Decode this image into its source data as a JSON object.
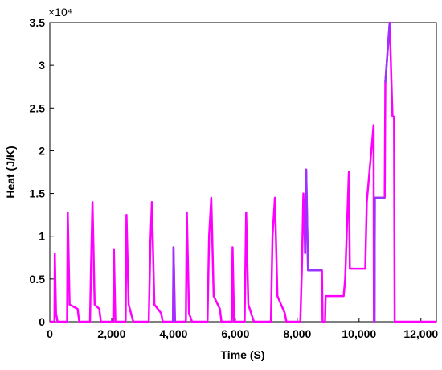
{
  "chart_data": {
    "type": "line",
    "x_label": "Time (S)",
    "y_label": "Heat (J/K)",
    "y_multiplier": "×10⁴",
    "xlim": [
      0,
      12500
    ],
    "ylim": [
      0,
      3.5
    ],
    "xticks": [
      0,
      {
        "value": 2000,
        "label": "2,000"
      },
      {
        "value": 4000,
        "label": "4,000"
      },
      {
        "value": 6000,
        "label": "6,000"
      },
      {
        "value": 8000,
        "label": "8,000"
      },
      {
        "value": 10000,
        "label": "10,000"
      },
      {
        "value": 12000,
        "label": "12,000"
      }
    ],
    "yticks": [
      0,
      0.5,
      1,
      1.5,
      2,
      2.5,
      3,
      3.5
    ],
    "grid": false,
    "series": [
      {
        "color": "#ff00ff",
        "x": [
          0,
          150,
          160,
          200,
          250,
          560,
          580,
          640,
          900,
          950,
          1300,
          1330,
          1380,
          1450,
          1600,
          1650,
          2050,
          2070,
          2120,
          2450,
          2480,
          2550,
          2700,
          3200,
          3250,
          3300,
          3380,
          3600,
          3650,
          3980,
          4000,
          4050,
          4400,
          4430,
          4500,
          4600,
          5100,
          5150,
          5220,
          5300,
          5500,
          5550,
          5890,
          5910,
          5960,
          6300,
          6350,
          6420,
          6600,
          7150,
          7200,
          7280,
          7360,
          7600,
          7650,
          8100,
          8150,
          8200,
          8260,
          8290,
          8350,
          8800,
          8820,
          8900,
          8920,
          9500,
          9550,
          9670,
          9700,
          10200,
          10250,
          10470,
          10480,
          10500,
          10510,
          10830,
          10850,
          10990,
          11080,
          11130,
          11150,
          12500
        ],
        "values": [
          0,
          0,
          0.8,
          0.1,
          0,
          0,
          1.28,
          0.2,
          0.15,
          0,
          0,
          0.6,
          1.4,
          0.2,
          0.15,
          0,
          0,
          0.85,
          0,
          0,
          1.25,
          0.2,
          0,
          0,
          0.9,
          1.4,
          0.2,
          0.1,
          0,
          0,
          0.87,
          0,
          0,
          1.28,
          0.1,
          0,
          0,
          1.0,
          1.45,
          0.3,
          0.15,
          0,
          0,
          0.87,
          0,
          0,
          1.28,
          0.2,
          0,
          0,
          1.0,
          1.45,
          0.3,
          0.1,
          0,
          0,
          0.6,
          1.5,
          0.8,
          1.78,
          0.6,
          0.6,
          0,
          0,
          0.3,
          0.3,
          0.5,
          1.75,
          0.62,
          0.62,
          1.4,
          2.3,
          0,
          0,
          1.45,
          1.45,
          2.8,
          3.5,
          2.4,
          2.4,
          0,
          0
        ]
      },
      {
        "color": "#9933ff",
        "x": [
          3990,
          4000,
          4040,
          4045,
          8250,
          8290,
          8350,
          8800,
          8805,
          10500,
          10510,
          10830,
          10835,
          10850,
          10990
        ],
        "values": [
          0,
          0.87,
          0,
          null,
          0.8,
          1.78,
          0.6,
          0.6,
          null,
          0,
          1.45,
          1.45,
          null,
          2.8,
          3.5
        ]
      }
    ]
  }
}
